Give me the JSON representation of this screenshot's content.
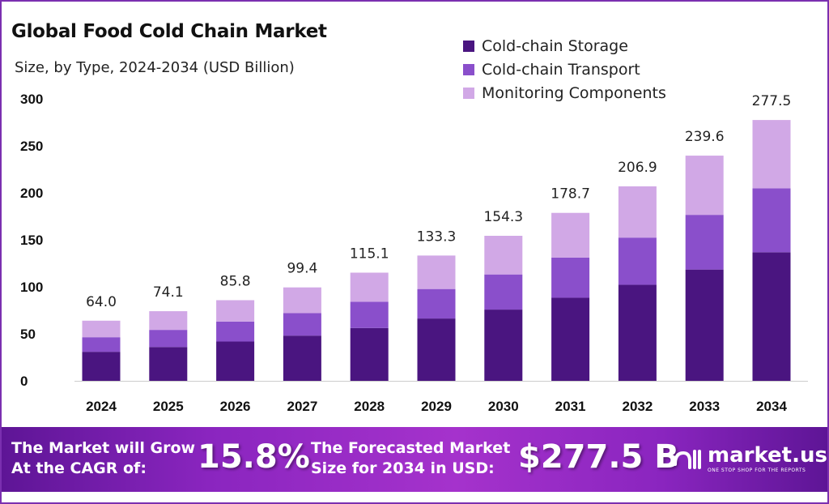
{
  "chart_data": {
    "type": "bar",
    "stacked": true,
    "title": "Global Food Cold Chain Market",
    "subtitle": "Size, by Type, 2024-2034 (USD Billion)",
    "categories": [
      "2024",
      "2025",
      "2026",
      "2027",
      "2028",
      "2029",
      "2030",
      "2031",
      "2032",
      "2033",
      "2034"
    ],
    "series": [
      {
        "name": "Cold-chain Storage",
        "color": "#4a1580",
        "values": [
          30.9,
          36.0,
          41.8,
          48.1,
          56.2,
          66.3,
          75.8,
          88.4,
          102.2,
          118.4,
          136.8
        ]
      },
      {
        "name": "Cold-chain Transport",
        "color": "#8a4fcb",
        "values": [
          15.5,
          18.2,
          21.3,
          23.9,
          27.9,
          31.4,
          37.4,
          42.7,
          50.2,
          58.2,
          68.0
        ]
      },
      {
        "name": "Monitoring Components",
        "color": "#d1a8e6",
        "values": [
          17.6,
          19.9,
          22.7,
          27.4,
          31.0,
          35.6,
          41.1,
          47.6,
          54.5,
          63.0,
          72.7
        ]
      }
    ],
    "totals": [
      "64.0",
      "74.1",
      "85.8",
      "99.4",
      "115.1",
      "133.3",
      "154.3",
      "178.7",
      "206.9",
      "239.6",
      "277.5"
    ],
    "yticks": [
      "0",
      "50",
      "100",
      "150",
      "200",
      "250",
      "300"
    ],
    "ylim": [
      0,
      300
    ],
    "grid": false,
    "legend": "top-right"
  },
  "banner": {
    "cagr_label_1": "The Market will Grow",
    "cagr_label_2": "At the CAGR of:",
    "cagr_value": "15.8%",
    "forecast_label_1": "The Forecasted Market",
    "forecast_label_2": "Size for 2034 in USD:",
    "forecast_value": "$277.5 B",
    "logo_name": "market.us",
    "logo_tagline": "ONE STOP SHOP FOR THE REPORTS"
  }
}
